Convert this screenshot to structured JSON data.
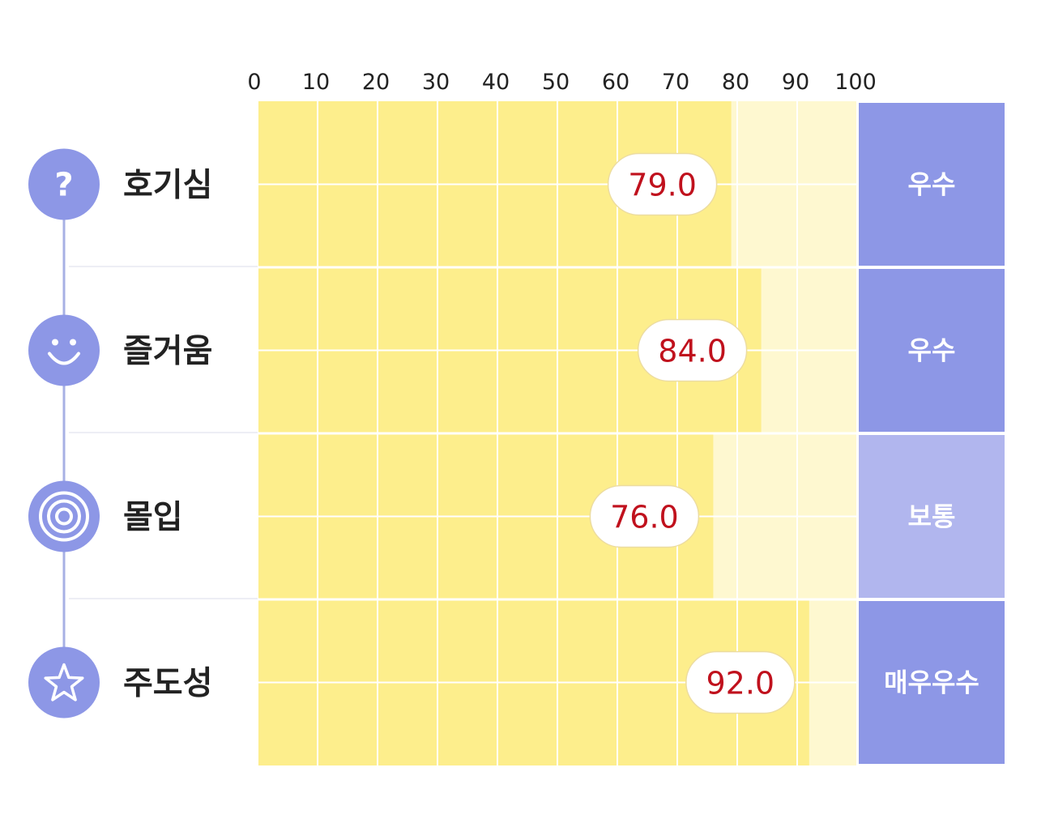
{
  "chart_data": {
    "type": "bar",
    "orientation": "horizontal",
    "categories": [
      "호기심",
      "즐거움",
      "몰입",
      "주도성"
    ],
    "values": [
      79.0,
      84.0,
      76.0,
      92.0
    ],
    "value_labels": [
      "79.0",
      "84.0",
      "76.0",
      "92.0"
    ],
    "grades": [
      "우수",
      "우수",
      "보통",
      "매우우수"
    ],
    "icons": [
      "question-icon",
      "smile-icon",
      "target-icon",
      "star-icon"
    ],
    "xticks": [
      "0",
      "10",
      "20",
      "30",
      "40",
      "50",
      "60",
      "70",
      "80",
      "90",
      "100"
    ],
    "xlim": [
      0,
      100
    ],
    "grid": true,
    "colors": {
      "bar": "#fdee8c",
      "track": "#fef8d0",
      "grid": "#ffffff",
      "icon": "#8d97e6",
      "grade_strong": "#8d97e6",
      "grade_weak": "#b1b6ee",
      "value_text": "#c0111d"
    }
  }
}
